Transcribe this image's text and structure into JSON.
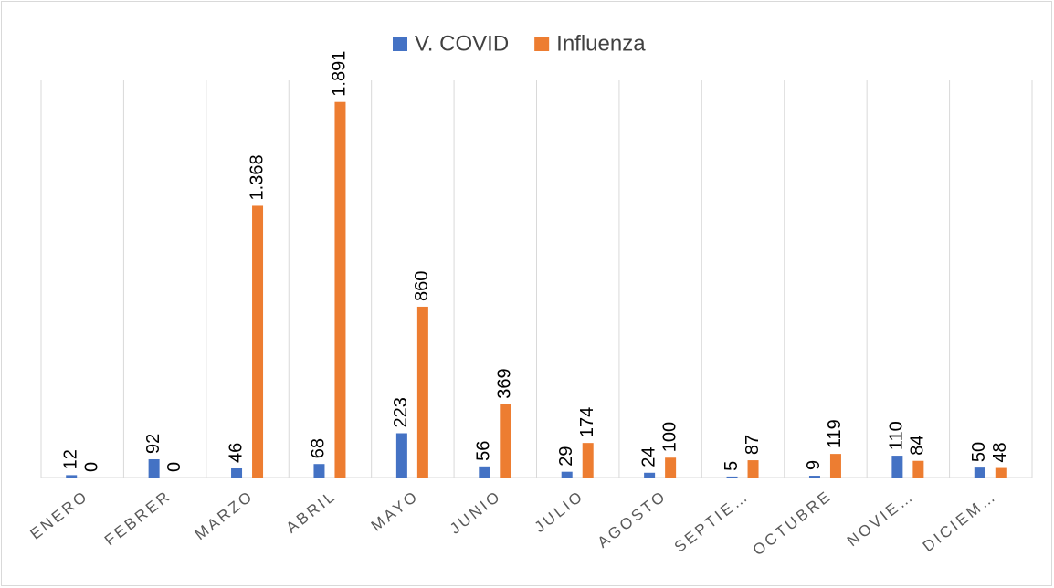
{
  "chart_data": {
    "type": "bar",
    "categories": [
      "ENERO",
      "FEBRER",
      "MARZO",
      "ABRIL",
      "MAYO",
      "JUNIO",
      "JULIO",
      "AGOSTO",
      "SEPTIE…",
      "OCTUBRE",
      "NOVIE…",
      "DICIEM…"
    ],
    "series": [
      {
        "name": "V. COVID",
        "color": "#4472c4",
        "values": [
          12,
          92,
          46,
          68,
          223,
          56,
          29,
          24,
          5,
          9,
          110,
          50
        ]
      },
      {
        "name": "Influenza",
        "color": "#ed7d31",
        "values": [
          0,
          0,
          1368,
          1891,
          860,
          369,
          174,
          100,
          87,
          119,
          84,
          48
        ],
        "value_labels": [
          "0",
          "0",
          "1.368",
          "1.891",
          "860",
          "369",
          "174",
          "100",
          "87",
          "119",
          "84",
          "48"
        ]
      }
    ],
    "ylim": [
      0,
      2000
    ],
    "legend": "top"
  }
}
